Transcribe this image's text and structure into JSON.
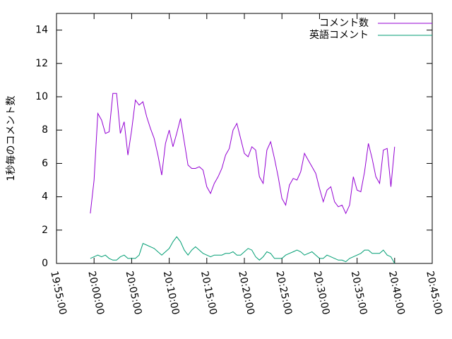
{
  "chart_data": {
    "type": "line",
    "ylabel": "1秒毎のコメント数",
    "x": [
      "19:59:30",
      "20:00:00",
      "20:00:30",
      "20:01:00",
      "20:01:30",
      "20:02:00",
      "20:02:30",
      "20:03:00",
      "20:03:30",
      "20:04:00",
      "20:04:30",
      "20:05:00",
      "20:05:30",
      "20:06:00",
      "20:06:30",
      "20:07:00",
      "20:07:30",
      "20:08:00",
      "20:08:30",
      "20:09:00",
      "20:09:30",
      "20:10:00",
      "20:10:30",
      "20:11:00",
      "20:11:30",
      "20:12:00",
      "20:12:30",
      "20:13:00",
      "20:13:30",
      "20:14:00",
      "20:14:30",
      "20:15:00",
      "20:15:30",
      "20:16:00",
      "20:16:30",
      "20:17:00",
      "20:17:30",
      "20:18:00",
      "20:18:30",
      "20:19:00",
      "20:19:30",
      "20:20:00",
      "20:20:30",
      "20:21:00",
      "20:21:30",
      "20:22:00",
      "20:22:30",
      "20:23:00",
      "20:23:30",
      "20:24:00",
      "20:24:30",
      "20:25:00",
      "20:25:30",
      "20:26:00",
      "20:26:30",
      "20:27:00",
      "20:27:30",
      "20:28:00",
      "20:28:30",
      "20:29:00",
      "20:29:30",
      "20:30:00",
      "20:30:30",
      "20:31:00",
      "20:31:30",
      "20:32:00",
      "20:32:30",
      "20:33:00",
      "20:33:30",
      "20:34:00",
      "20:34:30",
      "20:35:00",
      "20:35:30",
      "20:36:00",
      "20:36:30",
      "20:37:00",
      "20:37:30",
      "20:38:00",
      "20:38:30",
      "20:39:00",
      "20:39:30",
      "20:40:00"
    ],
    "series": [
      {
        "name": "コメント数",
        "color": "#9400d3",
        "values": [
          3.0,
          5.0,
          9.0,
          8.6,
          7.8,
          7.9,
          10.2,
          10.2,
          7.8,
          8.5,
          6.5,
          8.0,
          9.8,
          9.5,
          9.7,
          8.8,
          8.1,
          7.5,
          6.5,
          5.3,
          7.2,
          8.0,
          7.0,
          7.8,
          8.7,
          7.3,
          5.9,
          5.7,
          5.7,
          5.8,
          5.6,
          4.6,
          4.2,
          4.8,
          5.2,
          5.7,
          6.5,
          6.9,
          8.0,
          8.4,
          7.5,
          6.6,
          6.4,
          7.0,
          6.8,
          5.2,
          4.8,
          6.8,
          7.3,
          6.3,
          5.2,
          3.9,
          3.5,
          4.7,
          5.1,
          5.0,
          5.5,
          6.6,
          6.2,
          5.8,
          5.4,
          4.5,
          3.7,
          4.4,
          4.6,
          3.7,
          3.4,
          3.5,
          3.0,
          3.5,
          5.2,
          4.4,
          4.3,
          5.5,
          7.2,
          6.3,
          5.2,
          4.8,
          6.8,
          6.9,
          4.6,
          7.0
        ]
      },
      {
        "name": "英語コメント",
        "color": "#009e73",
        "values": [
          0.3,
          0.4,
          0.5,
          0.4,
          0.5,
          0.3,
          0.2,
          0.2,
          0.4,
          0.5,
          0.3,
          0.3,
          0.3,
          0.5,
          1.2,
          1.1,
          1.0,
          0.9,
          0.7,
          0.5,
          0.7,
          0.9,
          1.3,
          1.6,
          1.3,
          0.8,
          0.5,
          0.8,
          1.0,
          0.8,
          0.6,
          0.5,
          0.4,
          0.5,
          0.5,
          0.5,
          0.6,
          0.6,
          0.7,
          0.5,
          0.5,
          0.7,
          0.9,
          0.8,
          0.4,
          0.2,
          0.4,
          0.7,
          0.6,
          0.3,
          0.3,
          0.3,
          0.5,
          0.6,
          0.7,
          0.8,
          0.7,
          0.5,
          0.6,
          0.7,
          0.5,
          0.3,
          0.3,
          0.5,
          0.4,
          0.3,
          0.2,
          0.2,
          0.1,
          0.3,
          0.4,
          0.5,
          0.6,
          0.8,
          0.8,
          0.6,
          0.6,
          0.6,
          0.8,
          0.5,
          0.4,
          0.0
        ]
      }
    ],
    "xlim": [
      "19:55:00",
      "20:45:00"
    ],
    "xticks": [
      "19:55:00",
      "20:00:00",
      "20:05:00",
      "20:10:00",
      "20:15:00",
      "20:20:00",
      "20:25:00",
      "20:30:00",
      "20:35:00",
      "20:40:00",
      "20:45:00"
    ],
    "ylim": [
      0,
      15
    ],
    "yticks": [
      0,
      2,
      4,
      6,
      8,
      10,
      12,
      14
    ],
    "legend": "top-right"
  }
}
